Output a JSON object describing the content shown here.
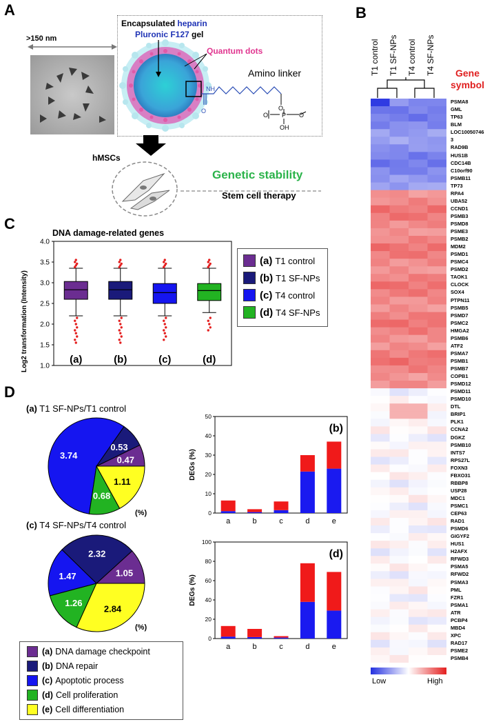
{
  "panel_a": {
    "label": "A",
    "size_label": ">150 nm",
    "encapsulated": "Encapsulated",
    "heparin": "heparin",
    "pluronic": "Pluronic F127",
    "gel": "gel",
    "quantum_dots": "Quantum dots",
    "amino_linker": "Amino linker",
    "cells": "hMSCs",
    "genetic_stability": "Genetic stability",
    "stem_cell_therapy": "Stem cell therapy",
    "chem_nh": "NH",
    "chem_o": "O",
    "chem_p": "P",
    "chem_oh": "OH",
    "colors": {
      "heparin": "#1f33b5",
      "quantum": "#e0358f",
      "genetic": "#2bb34a"
    }
  },
  "panel_b": {
    "label": "B",
    "columns": [
      "T1 control",
      "T1 SF-NPs",
      "T4 control",
      "T4 SF-NPs"
    ],
    "gene_header": [
      "Gene",
      "symbol"
    ],
    "genes": [
      "PSMA8",
      "GML",
      "TP63",
      "BLM",
      "LOC10050746",
      "3",
      "RAD9B",
      "HUS1B",
      "CDC14B",
      "C10orf90",
      "PSMB11",
      "TP73",
      "RPA4",
      "UBA52",
      "CCND1",
      "PSMB3",
      "PSMD8",
      "PSME3",
      "PSMB2",
      "MDM2",
      "PSMD1",
      "PSMC4",
      "PSMD2",
      "TAOK1",
      "CLOCK",
      "SOX4",
      "PTPN11",
      "PSMB5",
      "PSMD7",
      "PSMC2",
      "HMGA2",
      "PSMB6",
      "ATF2",
      "PSMA7",
      "PSMB1",
      "PSMB7",
      "COPB1",
      "PSMD12",
      "PSMD11",
      "PSMD10",
      "DTL",
      "BRIP1",
      "PLK1",
      "CCNA2",
      "DGKZ",
      "PSMB10",
      "INTS7",
      "RPS27L",
      "FOXN3",
      "FBXO31",
      "RBBP8",
      "USP28",
      "MDC1",
      "PSMC1",
      "CEP63",
      "RAD1",
      "PSMD6",
      "GIGYF2",
      "HUS1",
      "H2AFX",
      "RFWD3",
      "PSMA5",
      "RFWD2",
      "PSMA3",
      "PML",
      "FZR1",
      "PSMA1",
      "ATR",
      "PCBP4",
      "MBD4",
      "XPC",
      "RAD17",
      "PSME2",
      "PSMB4"
    ],
    "legend_low": "Low",
    "legend_high": "High"
  },
  "panel_c": {
    "label": "C",
    "chart_data": {
      "type": "box",
      "title": "DNA damage-related genes",
      "ylabel": "Log2 transformation  (Intensity)",
      "ylim": [
        1.0,
        4.0
      ],
      "yticks": [
        "1.0",
        "1.5",
        "2.0",
        "2.5",
        "3.0",
        "3.5",
        "4.0"
      ],
      "categories": [
        "(a)",
        "(b)",
        "(c)",
        "(d)"
      ],
      "boxes": [
        {
          "name": "T1 control",
          "q1": 2.6,
          "median": 2.83,
          "q3": 3.03,
          "low": 2.2,
          "high": 3.35,
          "color": "#6b2d91"
        },
        {
          "name": "T1 SF-NPs",
          "q1": 2.6,
          "median": 2.83,
          "q3": 3.03,
          "low": 2.2,
          "high": 3.35,
          "color": "#1a1a7a"
        },
        {
          "name": "T4 control",
          "q1": 2.5,
          "median": 2.76,
          "q3": 2.98,
          "low": 2.2,
          "high": 3.35,
          "color": "#1515f0"
        },
        {
          "name": "T4 SF-NPs",
          "q1": 2.57,
          "median": 2.81,
          "q3": 2.98,
          "low": 2.28,
          "high": 3.35,
          "color": "#22b322"
        }
      ],
      "legend": [
        {
          "key": "(a)",
          "text": "T1 control",
          "color": "#6b2d91"
        },
        {
          "key": "(b)",
          "text": "T1 SF-NPs",
          "color": "#1a1a7a"
        },
        {
          "key": "(c)",
          "text": "T4 control",
          "color": "#1515f0"
        },
        {
          "key": "(d)",
          "text": "T4 SF-NPs",
          "color": "#22b322"
        }
      ]
    }
  },
  "panel_d": {
    "label": "D",
    "pie1": {
      "title_key": "(a)",
      "title": "T1 SF-NPs/T1 control",
      "unit": "(%)",
      "chart_data": {
        "type": "pie",
        "labels": [
          "(a)",
          "(b)",
          "(c)",
          "(d)",
          "(e)"
        ],
        "values": [
          0.47,
          0.53,
          3.74,
          0.68,
          1.11
        ]
      }
    },
    "pie2": {
      "title_key": "(c)",
      "title": "T4 SF-NPs/T4 control",
      "unit": "(%)",
      "chart_data": {
        "type": "pie",
        "labels": [
          "(a)",
          "(b)",
          "(c)",
          "(d)",
          "(e)"
        ],
        "values": [
          1.05,
          2.32,
          1.47,
          1.26,
          2.84
        ]
      }
    },
    "pie_colors": [
      "#6b2d91",
      "#1a1a7a",
      "#1515f0",
      "#22b322",
      "#ffff22"
    ],
    "bar1": {
      "tag": "(b)",
      "chart_data": {
        "type": "stacked-bar",
        "ylabel": "DEGs (%)",
        "ylim": [
          0,
          50
        ],
        "yticks": [
          "0",
          "10",
          "20",
          "30",
          "40",
          "50"
        ],
        "categories": [
          "a",
          "b",
          "c",
          "d",
          "e"
        ],
        "series": [
          {
            "name": "blue",
            "values": [
              1,
              0.5,
              1.5,
              21.5,
              23
            ],
            "color": "#1a1af0"
          },
          {
            "name": "red",
            "values": [
              5.5,
              1.5,
              4.5,
              8.5,
              14
            ],
            "color": "#f01a1a"
          }
        ]
      }
    },
    "bar2": {
      "tag": "(d)",
      "chart_data": {
        "type": "stacked-bar",
        "ylabel": "DEGs (%)",
        "ylim": [
          0,
          100
        ],
        "yticks": [
          "0",
          "20",
          "40",
          "60",
          "80",
          "100"
        ],
        "categories": [
          "a",
          "b",
          "c",
          "d",
          "e"
        ],
        "series": [
          {
            "name": "blue",
            "values": [
              2,
              1.5,
              1,
              38,
              29
            ],
            "color": "#1a1af0"
          },
          {
            "name": "red",
            "values": [
              11,
              8.5,
              1.5,
              40,
              40
            ],
            "color": "#f01a1a"
          }
        ]
      }
    },
    "legend": [
      {
        "key": "(a)",
        "text": "DNA damage checkpoint",
        "color": "#6b2d91"
      },
      {
        "key": "(b)",
        "text": "DNA repair",
        "color": "#1a1a7a"
      },
      {
        "key": "(c)",
        "text": "Apoptotic process",
        "color": "#1515f0"
      },
      {
        "key": "(d)",
        "text": "Cell proliferation",
        "color": "#22b322"
      },
      {
        "key": "(e)",
        "text": "Cell differentiation",
        "color": "#ffff22"
      }
    ]
  }
}
